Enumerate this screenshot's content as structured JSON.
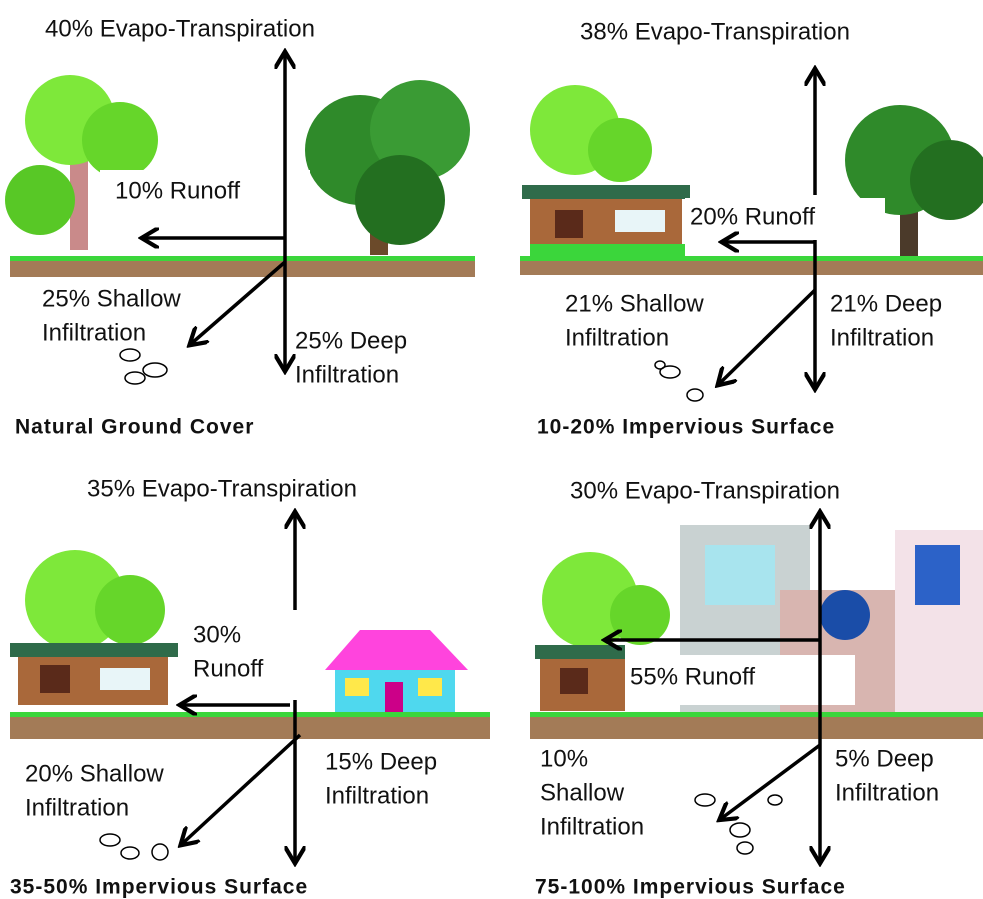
{
  "panels": [
    {
      "title": "Natural Ground Cover",
      "evapo": "40% Evapo-Transpiration",
      "runoff": [
        "10% Runoff"
      ],
      "shallow": [
        "25% Shallow",
        "Infiltration"
      ],
      "deep": [
        "25% Deep",
        "Infiltration"
      ]
    },
    {
      "title": "10-20% Impervious Surface",
      "evapo": "38% Evapo-Transpiration",
      "runoff": [
        "20% Runoff"
      ],
      "shallow": [
        "21% Shallow",
        "Infiltration"
      ],
      "deep": [
        "21% Deep",
        "Infiltration"
      ]
    },
    {
      "title": "35-50% Impervious Surface",
      "evapo": "35% Evapo-Transpiration",
      "runoff": [
        "30%",
        "Runoff"
      ],
      "shallow": [
        "20% Shallow",
        "Infiltration"
      ],
      "deep": [
        "15% Deep",
        "Infiltration"
      ]
    },
    {
      "title": "75-100% Impervious Surface",
      "evapo": "30% Evapo-Transpiration",
      "runoff": [
        "55% Runoff"
      ],
      "shallow": [
        "10%",
        "Shallow",
        "Infiltration"
      ],
      "deep": [
        "5% Deep",
        "Infiltration"
      ]
    }
  ]
}
